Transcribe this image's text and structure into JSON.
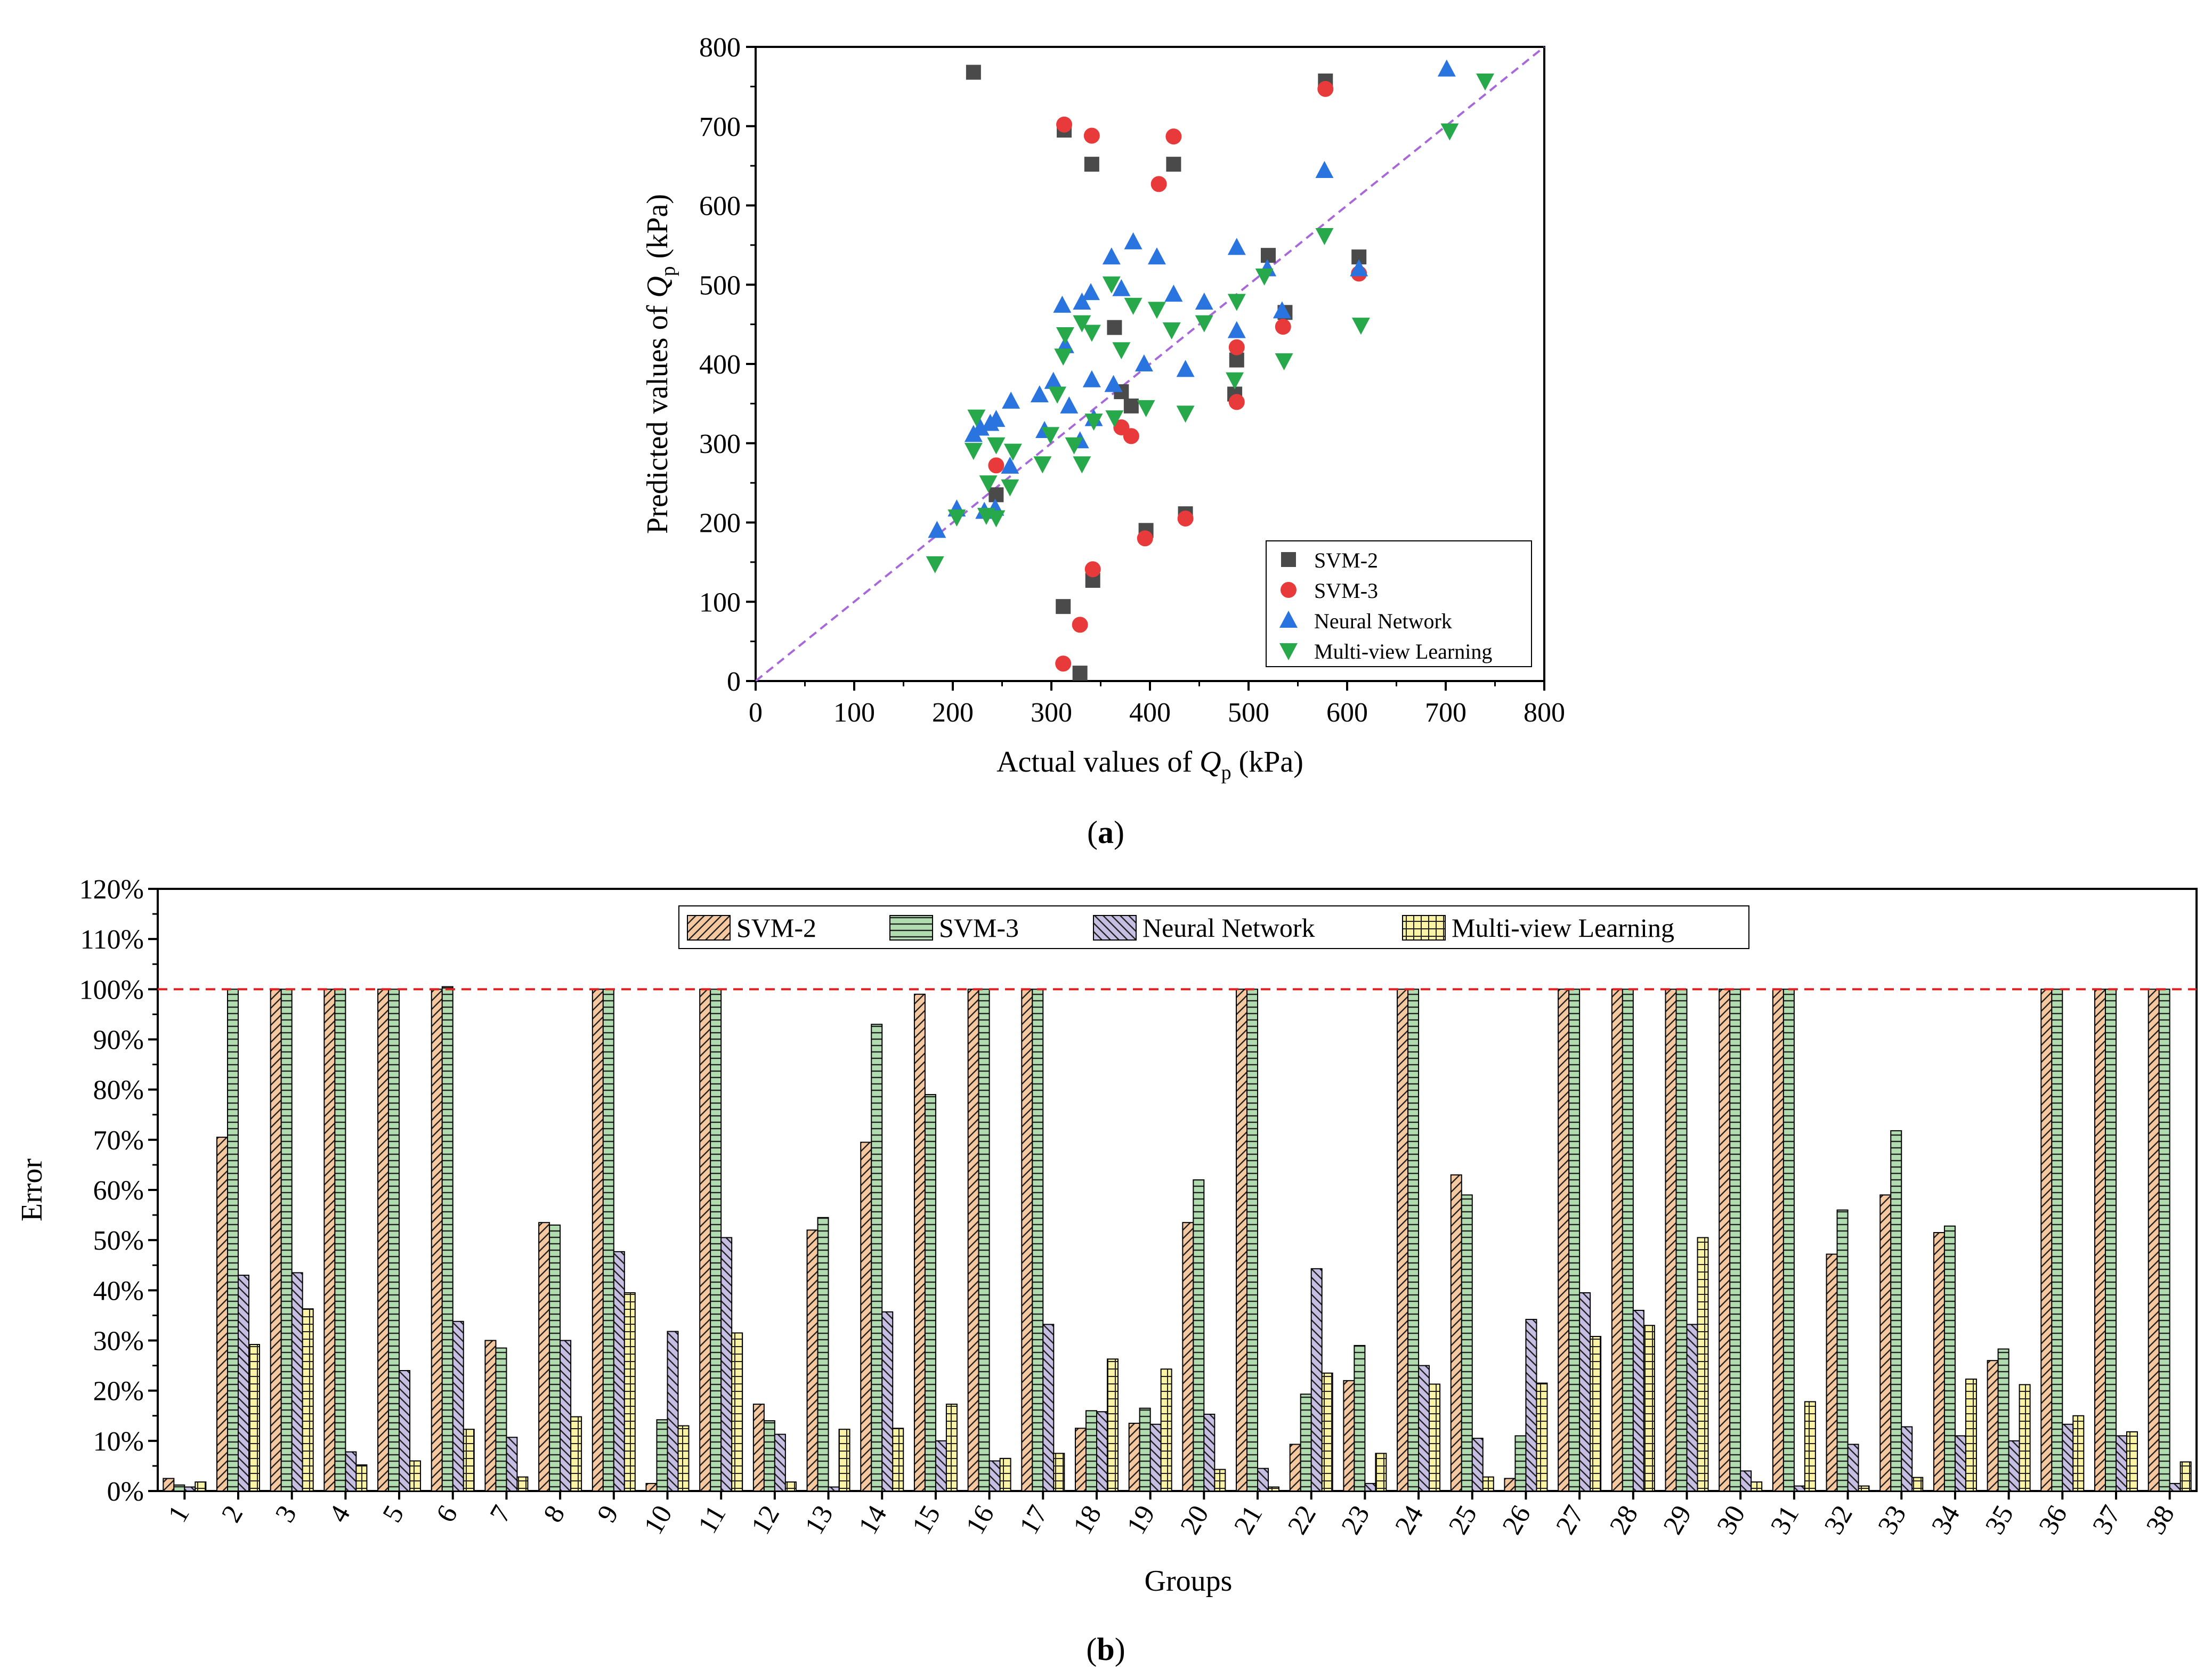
{
  "colors": {
    "svm2_marker": "#4a4a4a",
    "svm3_marker": "#e83a3a",
    "nn_marker": "#2a74e0",
    "mv_marker": "#27a84a",
    "diag_line": "#a868d8",
    "bar_svm2": "#f6c8a0",
    "bar_svm3": "#b0dcb0",
    "bar_nn": "#c7bfe3",
    "bar_mv": "#fbf3a6",
    "ref_line": "#e02020"
  },
  "chart_data": [
    {
      "type": "scatter",
      "panel_label": "a",
      "xlabel_pre": "Actual values of ",
      "ylabel_pre": "Predicted values of ",
      "q_main": "Q",
      "q_sub": "p",
      "unit": " (kPa)",
      "xlim": [
        0,
        800
      ],
      "ylim": [
        0,
        800
      ],
      "xticks": [
        "0",
        "100",
        "200",
        "300",
        "400",
        "500",
        "600",
        "700",
        "800"
      ],
      "yticks": [
        "0",
        "100",
        "200",
        "300",
        "400",
        "500",
        "600",
        "700",
        "800"
      ],
      "diagonal": true,
      "legend_position": "bottom-right",
      "series": [
        {
          "name": "SVM-2",
          "marker": "square",
          "points": [
            [
              221,
              768
            ],
            [
              313,
              695
            ],
            [
              341,
              652
            ],
            [
              424,
              652
            ],
            [
              312,
              94
            ],
            [
              342,
              127
            ],
            [
              329,
              10
            ],
            [
              244,
              235
            ],
            [
              364,
              446
            ],
            [
              371,
              365
            ],
            [
              381,
              347
            ],
            [
              396,
              190
            ],
            [
              436,
              211
            ],
            [
              488,
              405
            ],
            [
              486,
              362
            ],
            [
              520,
              537
            ],
            [
              537,
              465
            ],
            [
              578,
              757
            ],
            [
              612,
              535
            ]
          ]
        },
        {
          "name": "SVM-3",
          "marker": "circle",
          "points": [
            [
              313,
              702
            ],
            [
              341,
              688
            ],
            [
              424,
              687
            ],
            [
              409,
              627
            ],
            [
              312,
              22
            ],
            [
              342,
              141
            ],
            [
              329,
              71
            ],
            [
              244,
              272
            ],
            [
              371,
              320
            ],
            [
              381,
              309
            ],
            [
              395,
              180
            ],
            [
              436,
              205
            ],
            [
              488,
              421
            ],
            [
              488,
              352
            ],
            [
              535,
              447
            ],
            [
              578,
              747
            ],
            [
              612,
              514
            ]
          ]
        },
        {
          "name": "Neural Network",
          "marker": "triangle-up",
          "points": [
            [
              184,
              190
            ],
            [
              204,
              217
            ],
            [
              221,
              311
            ],
            [
              228,
              319
            ],
            [
              238,
              325
            ],
            [
              243,
              218
            ],
            [
              244,
              330
            ],
            [
              232,
              214
            ],
            [
              258,
              271
            ],
            [
              259,
              353
            ],
            [
              288,
              361
            ],
            [
              293,
              316
            ],
            [
              302,
              378
            ],
            [
              311,
              474
            ],
            [
              314,
              423
            ],
            [
              318,
              347
            ],
            [
              329,
              303
            ],
            [
              331,
              478
            ],
            [
              340,
              490
            ],
            [
              341,
              380
            ],
            [
              343,
              331
            ],
            [
              361,
              535
            ],
            [
              363,
              374
            ],
            [
              371,
              495
            ],
            [
              383,
              554
            ],
            [
              394,
              400
            ],
            [
              407,
              535
            ],
            [
              424,
              488
            ],
            [
              436,
              393
            ],
            [
              455,
              478
            ],
            [
              488,
              547
            ],
            [
              488,
              442
            ],
            [
              519,
              520
            ],
            [
              534,
              467
            ],
            [
              577,
              644
            ],
            [
              612,
              520
            ],
            [
              701,
              772
            ]
          ]
        },
        {
          "name": "Multi-view Learning",
          "marker": "triangle-down",
          "points": [
            [
              182,
              148
            ],
            [
              204,
              207
            ],
            [
              221,
              291
            ],
            [
              224,
              333
            ],
            [
              234,
              209
            ],
            [
              236,
              250
            ],
            [
              244,
              298
            ],
            [
              244,
              206
            ],
            [
              258,
              245
            ],
            [
              261,
              290
            ],
            [
              291,
              274
            ],
            [
              299,
              311
            ],
            [
              306,
              362
            ],
            [
              312,
              410
            ],
            [
              314,
              437
            ],
            [
              323,
              298
            ],
            [
              331,
              452
            ],
            [
              331,
              274
            ],
            [
              341,
              440
            ],
            [
              343,
              328
            ],
            [
              361,
              501
            ],
            [
              364,
              332
            ],
            [
              371,
              418
            ],
            [
              383,
              474
            ],
            [
              396,
              345
            ],
            [
              407,
              469
            ],
            [
              422,
              443
            ],
            [
              436,
              338
            ],
            [
              455,
              452
            ],
            [
              486,
              380
            ],
            [
              488,
              479
            ],
            [
              516,
              511
            ],
            [
              536,
              404
            ],
            [
              577,
              562
            ],
            [
              614,
              449
            ],
            [
              704,
              694
            ],
            [
              740,
              757
            ]
          ]
        }
      ]
    },
    {
      "type": "bar",
      "panel_label": "b",
      "xlabel": "Groups",
      "ylabel": "Error",
      "ylim": [
        0,
        120
      ],
      "yticks": [
        "0%",
        "10%",
        "20%",
        "30%",
        "40%",
        "50%",
        "60%",
        "70%",
        "80%",
        "90%",
        "100%",
        "110%",
        "120%"
      ],
      "reference_line": 100,
      "legend_position": "top-right",
      "categories": [
        "1",
        "2",
        "3",
        "4",
        "5",
        "6",
        "7",
        "8",
        "9",
        "10",
        "11",
        "12",
        "13",
        "14",
        "15",
        "16",
        "17",
        "18",
        "19",
        "20",
        "21",
        "22",
        "23",
        "24",
        "25",
        "26",
        "27",
        "28",
        "29",
        "30",
        "31",
        "32",
        "33",
        "34",
        "35",
        "36",
        "37",
        "38"
      ],
      "series": [
        {
          "name": "SVM-2",
          "pattern": "diagonal",
          "values": [
            2.5,
            70.5,
            100,
            100,
            100,
            100,
            30,
            53.5,
            100,
            1.5,
            100,
            17.3,
            52,
            69.5,
            99,
            100,
            100,
            12.5,
            13.5,
            53.5,
            100,
            9.3,
            22,
            100,
            63,
            2.5,
            100,
            100,
            100,
            100,
            100,
            47.2,
            59,
            51.5,
            26,
            100,
            100,
            100
          ]
        },
        {
          "name": "SVM-3",
          "pattern": "horizontal",
          "values": [
            1.2,
            100,
            100,
            100,
            100,
            100.5,
            28.5,
            53,
            100,
            14.2,
            100,
            14,
            54.5,
            93,
            79,
            100,
            100,
            16,
            16.5,
            62,
            100,
            19.3,
            29,
            100,
            59,
            11,
            100,
            100,
            100,
            100,
            100,
            56,
            71.8,
            52.8,
            28.3,
            100,
            100,
            100
          ]
        },
        {
          "name": "Neural Network",
          "pattern": "backslash",
          "values": [
            0.8,
            43,
            43.5,
            7.8,
            24,
            33.8,
            10.7,
            30,
            47.7,
            31.8,
            50.5,
            11.3,
            0.8,
            35.7,
            10,
            6,
            33.2,
            15.8,
            13.3,
            15.3,
            4.5,
            44.3,
            1.5,
            25,
            10.5,
            34.2,
            39.5,
            36,
            33.2,
            4,
            1,
            9.3,
            12.8,
            11,
            10,
            13.3,
            11,
            1.5
          ]
        },
        {
          "name": "Multi-view Learning",
          "pattern": "grid",
          "values": [
            1.8,
            29.2,
            36.3,
            5.2,
            6,
            12.3,
            2.8,
            14.8,
            39.5,
            13,
            31.5,
            1.8,
            12.3,
            12.5,
            17.3,
            6.5,
            7.5,
            26.3,
            24.3,
            4.3,
            0.8,
            23.5,
            7.5,
            21.3,
            2.8,
            21.5,
            30.8,
            33,
            50.5,
            1.8,
            17.8,
            1,
            2.7,
            22.3,
            21.2,
            15,
            11.8,
            5.8
          ]
        }
      ]
    }
  ]
}
